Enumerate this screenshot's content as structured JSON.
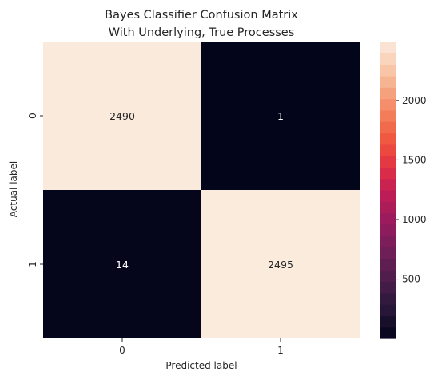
{
  "chart_data": {
    "type": "heatmap",
    "title_lines": [
      "Bayes Classifier Confusion Matrix",
      "With Underlying, True Processes"
    ],
    "xlabel": "Predicted label",
    "ylabel": "Actual label",
    "x_categories": [
      "0",
      "1"
    ],
    "y_categories": [
      "0",
      "1"
    ],
    "matrix": [
      [
        2490,
        1
      ],
      [
        14,
        2495
      ]
    ],
    "colorbar": {
      "min": 1,
      "max": 2495,
      "ticks": [
        500,
        1000,
        1500,
        2000
      ],
      "colormap": "rocket",
      "discrete_levels": 26
    },
    "colors": {
      "low": "#03051a",
      "high": "#faebdd",
      "text_on_dark": "#ffffff",
      "text_on_light": "#262626"
    }
  }
}
